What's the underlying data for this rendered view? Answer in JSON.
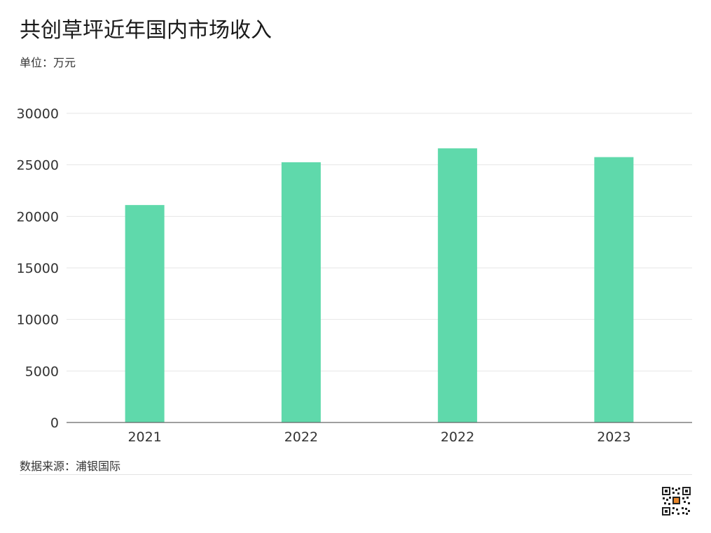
{
  "header": {
    "title": "共创草坪近年国内市场收入",
    "unit": "单位：万元"
  },
  "footer": {
    "source": "数据来源：浦银国际"
  },
  "colors": {
    "bar": "#5fd9ab",
    "grid": "#e6e6e6",
    "axis": "#666666",
    "tick_text": "#333333"
  },
  "chart_data": {
    "type": "bar",
    "categories": [
      "2021",
      "2022",
      "2022",
      "2023"
    ],
    "values": [
      21100,
      25250,
      26600,
      25750
    ],
    "title": "共创草坪近年国内市场收入",
    "subtitle": "单位：万元",
    "xlabel": "",
    "ylabel": "",
    "ylim": [
      0,
      30000
    ],
    "yticks": [
      0,
      5000,
      10000,
      15000,
      20000,
      25000,
      30000
    ],
    "grid": true,
    "legend": "none"
  },
  "qr_icon": "qr-code-icon"
}
